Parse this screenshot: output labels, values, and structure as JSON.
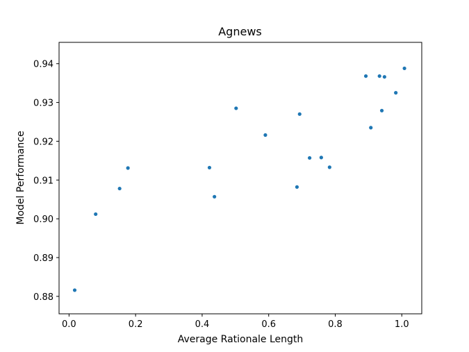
{
  "chart_data": {
    "type": "scatter",
    "title": "Agnews",
    "xlabel": "Average Rationale Length",
    "ylabel": "Model Performance",
    "xlim": [
      -0.03,
      1.06
    ],
    "ylim": [
      0.8755,
      0.9455
    ],
    "xticks": [
      0.0,
      0.2,
      0.4,
      0.6,
      0.8,
      1.0
    ],
    "xtick_labels": [
      "0.0",
      "0.2",
      "0.4",
      "0.6",
      "0.8",
      "1.0"
    ],
    "yticks": [
      0.88,
      0.89,
      0.9,
      0.91,
      0.92,
      0.93,
      0.94
    ],
    "ytick_labels": [
      "0.88",
      "0.89",
      "0.90",
      "0.91",
      "0.92",
      "0.93",
      "0.94"
    ],
    "grid": false,
    "marker_color": "#1f77b4",
    "points": [
      {
        "x": 0.017,
        "y": 0.8816
      },
      {
        "x": 0.08,
        "y": 0.9012
      },
      {
        "x": 0.152,
        "y": 0.9078
      },
      {
        "x": 0.177,
        "y": 0.9131
      },
      {
        "x": 0.422,
        "y": 0.9132
      },
      {
        "x": 0.437,
        "y": 0.9057
      },
      {
        "x": 0.502,
        "y": 0.9285
      },
      {
        "x": 0.59,
        "y": 0.9216
      },
      {
        "x": 0.685,
        "y": 0.9082
      },
      {
        "x": 0.693,
        "y": 0.927
      },
      {
        "x": 0.723,
        "y": 0.9157
      },
      {
        "x": 0.758,
        "y": 0.9158
      },
      {
        "x": 0.783,
        "y": 0.9133
      },
      {
        "x": 0.892,
        "y": 0.9368
      },
      {
        "x": 0.907,
        "y": 0.9235
      },
      {
        "x": 0.933,
        "y": 0.9368
      },
      {
        "x": 0.94,
        "y": 0.9279
      },
      {
        "x": 0.948,
        "y": 0.9366
      },
      {
        "x": 0.982,
        "y": 0.9325
      },
      {
        "x": 1.008,
        "y": 0.9388
      }
    ]
  }
}
